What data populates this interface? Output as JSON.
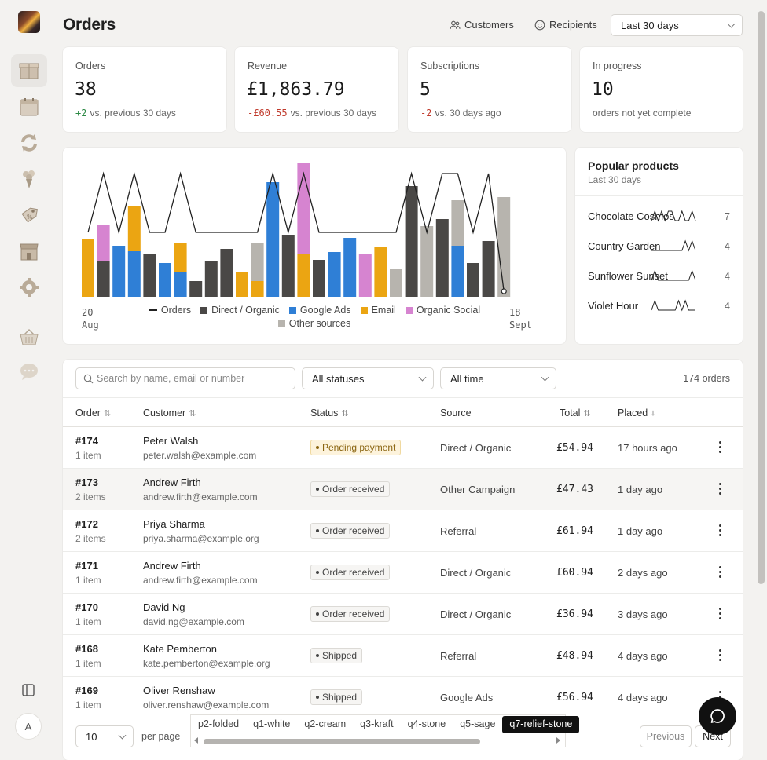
{
  "page": {
    "title": "Orders"
  },
  "header": {
    "customers_label": "Customers",
    "recipients_label": "Recipients",
    "range_select": "Last 30 days"
  },
  "sidebar": {
    "items": [
      {
        "name": "orders",
        "icon": "box-icon",
        "active": true
      },
      {
        "name": "calendar",
        "icon": "calendar-icon",
        "active": false
      },
      {
        "name": "subscriptions",
        "icon": "refresh-icon",
        "active": false
      },
      {
        "name": "products",
        "icon": "bouquet-icon",
        "active": false
      },
      {
        "name": "discounts",
        "icon": "tag-icon",
        "active": false
      },
      {
        "name": "shop",
        "icon": "storefront-icon",
        "active": false
      },
      {
        "name": "settings",
        "icon": "gear-icon",
        "active": false
      },
      {
        "name": "basket",
        "icon": "basket-icon",
        "active": false
      },
      {
        "name": "messages",
        "icon": "chat-bubble-icon",
        "active": false
      }
    ],
    "avatar_initial": "A"
  },
  "stats": [
    {
      "label": "Orders",
      "value": "38",
      "delta": "+2",
      "delta_sign": "pos",
      "suffix": "vs. previous 30 days"
    },
    {
      "label": "Revenue",
      "value": "£1,863.79",
      "delta": "-£60.55",
      "delta_sign": "neg",
      "suffix": "vs. previous 30 days"
    },
    {
      "label": "Subscriptions",
      "value": "5",
      "delta": "-2",
      "delta_sign": "neg",
      "suffix": "vs. 30 days ago"
    },
    {
      "label": "In progress",
      "value": "10",
      "delta": "",
      "delta_sign": "",
      "suffix": "orders not yet complete"
    }
  ],
  "chart_data": {
    "type": "bar",
    "stacked": true,
    "x_start_label": "20 Aug",
    "x_end_label": "18 Sept",
    "colors": {
      "Orders": "#222222",
      "Direct / Organic": "#4a4846",
      "Google Ads": "#2f7fd6",
      "Email": "#eba512",
      "Organic Social": "#d684d0",
      "Other sources": "#b7b4ae"
    },
    "legend": [
      "Orders",
      "Direct / Organic",
      "Google Ads",
      "Email",
      "Organic Social",
      "Other sources"
    ],
    "bars": [
      [
        {
          "s": "Email",
          "v": 73
        }
      ],
      [
        {
          "s": "Direct / Organic",
          "v": 45
        },
        {
          "s": "Organic Social",
          "v": 46
        }
      ],
      [
        {
          "s": "Google Ads",
          "v": 65
        }
      ],
      [
        {
          "s": "Google Ads",
          "v": 58
        },
        {
          "s": "Email",
          "v": 58
        }
      ],
      [
        {
          "s": "Direct / Organic",
          "v": 54
        }
      ],
      [
        {
          "s": "Google Ads",
          "v": 43
        }
      ],
      [
        {
          "s": "Google Ads",
          "v": 31
        },
        {
          "s": "Email",
          "v": 37
        }
      ],
      [
        {
          "s": "Direct / Organic",
          "v": 20
        }
      ],
      [
        {
          "s": "Direct / Organic",
          "v": 45
        }
      ],
      [
        {
          "s": "Direct / Organic",
          "v": 61
        }
      ],
      [
        {
          "s": "Email",
          "v": 31
        }
      ],
      [
        {
          "s": "Email",
          "v": 20
        },
        {
          "s": "Other sources",
          "v": 49
        }
      ],
      [
        {
          "s": "Google Ads",
          "v": 146
        }
      ],
      [
        {
          "s": "Direct / Organic",
          "v": 79
        }
      ],
      [
        {
          "s": "Email",
          "v": 55
        },
        {
          "s": "Organic Social",
          "v": 115
        }
      ],
      [
        {
          "s": "Direct / Organic",
          "v": 47
        }
      ],
      [
        {
          "s": "Google Ads",
          "v": 57
        }
      ],
      [
        {
          "s": "Google Ads",
          "v": 75
        }
      ],
      [
        {
          "s": "Organic Social",
          "v": 54
        }
      ],
      [
        {
          "s": "Email",
          "v": 64
        }
      ],
      [
        {
          "s": "Other sources",
          "v": 36
        }
      ],
      [
        {
          "s": "Direct / Organic",
          "v": 141
        }
      ],
      [
        {
          "s": "Other sources",
          "v": 90
        }
      ],
      [
        {
          "s": "Direct / Organic",
          "v": 99
        }
      ],
      [
        {
          "s": "Google Ads",
          "v": 65
        },
        {
          "s": "Other sources",
          "v": 58
        }
      ],
      [
        {
          "s": "Direct / Organic",
          "v": 43
        }
      ],
      [
        {
          "s": "Direct / Organic",
          "v": 71
        }
      ],
      [
        {
          "s": "Other sources",
          "v": 127
        }
      ]
    ],
    "orders_line": [
      1,
      2,
      1,
      2,
      1,
      1,
      2,
      1,
      1,
      1,
      1,
      1,
      2,
      1,
      2,
      1,
      1,
      1,
      1,
      1,
      1,
      2,
      1,
      2,
      2,
      1,
      2,
      0
    ]
  },
  "popular": {
    "title": "Popular products",
    "subtitle": "Last 30 days",
    "items": [
      {
        "name": "Chocolate Cosmos",
        "count": "7",
        "spark": [
          0,
          1,
          0,
          1,
          0,
          1,
          1,
          0,
          0,
          1,
          0,
          0,
          1,
          0
        ]
      },
      {
        "name": "Country Garden",
        "count": "4",
        "spark": [
          0,
          0,
          0,
          0,
          0,
          0,
          0,
          0,
          0,
          0,
          1,
          0,
          1,
          0
        ]
      },
      {
        "name": "Sunflower Sunset",
        "count": "4",
        "spark": [
          0,
          1,
          0,
          0,
          0,
          0,
          0,
          0,
          0,
          0,
          0,
          0,
          1,
          0
        ]
      },
      {
        "name": "Violet Hour",
        "count": "4",
        "spark": [
          0,
          1,
          0,
          0,
          0,
          0,
          0,
          0,
          1,
          0,
          1,
          0,
          0,
          0
        ]
      }
    ]
  },
  "table": {
    "search_placeholder": "Search by name, email or number",
    "status_filter": "All statuses",
    "time_filter": "All time",
    "count_label": "174 orders",
    "columns": {
      "order": "Order",
      "customer": "Customer",
      "status": "Status",
      "source": "Source",
      "total": "Total",
      "placed": "Placed"
    },
    "rows": [
      {
        "order": "#174",
        "items": "1 item",
        "name": "Peter Walsh",
        "email": "peter.walsh@example.com",
        "status": "Pending payment",
        "status_kind": "pending",
        "source": "Direct / Organic",
        "total": "£54.94",
        "placed": "17 hours ago"
      },
      {
        "order": "#173",
        "items": "2 items",
        "name": "Andrew Firth",
        "email": "andrew.firth@example.com",
        "status": "Order received",
        "status_kind": "neutral",
        "source": "Other Campaign",
        "total": "£47.43",
        "placed": "1 day ago"
      },
      {
        "order": "#172",
        "items": "2 items",
        "name": "Priya Sharma",
        "email": "priya.sharma@example.org",
        "status": "Order received",
        "status_kind": "neutral",
        "source": "Referral",
        "total": "£61.94",
        "placed": "1 day ago"
      },
      {
        "order": "#171",
        "items": "1 item",
        "name": "Andrew Firth",
        "email": "andrew.firth@example.com",
        "status": "Order received",
        "status_kind": "neutral",
        "source": "Direct / Organic",
        "total": "£60.94",
        "placed": "2 days ago"
      },
      {
        "order": "#170",
        "items": "1 item",
        "name": "David Ng",
        "email": "david.ng@example.com",
        "status": "Order received",
        "status_kind": "neutral",
        "source": "Direct / Organic",
        "total": "£36.94",
        "placed": "3 days ago"
      },
      {
        "order": "#168",
        "items": "1 item",
        "name": "Kate Pemberton",
        "email": "kate.pemberton@example.org",
        "status": "Shipped",
        "status_kind": "neutral",
        "source": "Referral",
        "total": "£48.94",
        "placed": "4 days ago"
      },
      {
        "order": "#169",
        "items": "1 item",
        "name": "Oliver Renshaw",
        "email": "oliver.renshaw@example.com",
        "status": "Shipped",
        "status_kind": "neutral",
        "source": "Google Ads",
        "total": "£56.94",
        "placed": "4 days ago"
      }
    ]
  },
  "pagination": {
    "per_page_value": "10",
    "per_page_label": "per page",
    "previous": "Previous",
    "next": "Next"
  },
  "overlay_tabs": {
    "items": [
      "p2-folded",
      "q1-white",
      "q2-cream",
      "q3-kraft",
      "q4-stone",
      "q5-sage",
      "q7-relief-stone"
    ],
    "active_index": 6
  }
}
